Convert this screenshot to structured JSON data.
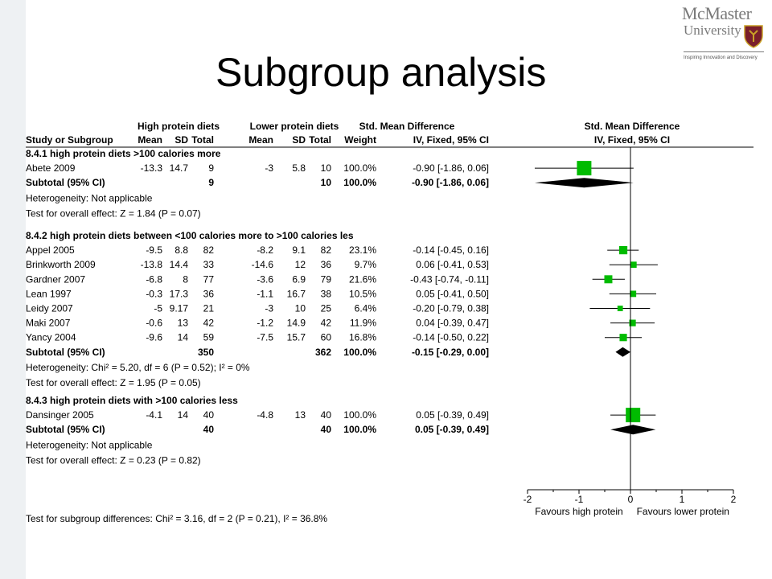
{
  "slide": {
    "title": "Subgroup analysis",
    "logo": {
      "line1": "McMaster",
      "line2": "University",
      "tagline": "Inspiring Innovation and Discovery"
    }
  },
  "headers": {
    "study": "Study or Subgroup",
    "group1": "High protein diets",
    "group2": "Lower protein diets",
    "mean": "Mean",
    "sd": "SD",
    "total": "Total",
    "weight": "Weight",
    "effect_title": "Std. Mean Difference",
    "effect_method": "IV, Fixed, 95% CI",
    "plot_title": "Std. Mean Difference",
    "plot_method": "IV, Fixed, 95% CI"
  },
  "colors": {
    "square": "#00bb00",
    "diamond": "#000000"
  },
  "chart_data": {
    "type": "forest",
    "xlim": [
      -2,
      2
    ],
    "xticks": [
      "-2",
      "-1",
      "0",
      "1",
      "2"
    ],
    "favours_left": "Favours high protein",
    "favours_right": "Favours lower protein",
    "overall_test": "Test for subgroup differences: Chi² = 3.16, df = 2 (P = 0.21), I² = 36.8%",
    "groups": [
      {
        "title": "8.4.1 high protein diets >100 calories more",
        "studies": [
          {
            "name": "Abete 2009",
            "m1": "-13.3",
            "sd1": "14.7",
            "n1": "9",
            "m2": "-3",
            "sd2": "5.8",
            "n2": "10",
            "weight": "100.0%",
            "ci": "-0.90 [-1.86, 0.06]",
            "est": -0.9,
            "lo": -1.86,
            "hi": 0.06,
            "w": 100.0
          }
        ],
        "subtotal": {
          "label": "Subtotal (95% CI)",
          "n1": "9",
          "n2": "10",
          "weight": "100.0%",
          "ci": "-0.90 [-1.86, 0.06]",
          "est": -0.9,
          "lo": -1.86,
          "hi": 0.06
        },
        "heterogeneity": "Heterogeneity: Not applicable",
        "effect_test": "Test for overall effect: Z = 1.84 (P = 0.07)"
      },
      {
        "title": "8.4.2 high protein diets between <100 calories more to >100 calories les",
        "studies": [
          {
            "name": "Appel 2005",
            "m1": "-9.5",
            "sd1": "8.8",
            "n1": "82",
            "m2": "-8.2",
            "sd2": "9.1",
            "n2": "82",
            "weight": "23.1%",
            "ci": "-0.14 [-0.45, 0.16]",
            "est": -0.14,
            "lo": -0.45,
            "hi": 0.16,
            "w": 23.1
          },
          {
            "name": "Brinkworth 2009",
            "m1": "-13.8",
            "sd1": "14.4",
            "n1": "33",
            "m2": "-14.6",
            "sd2": "12",
            "n2": "36",
            "weight": "9.7%",
            "ci": "0.06 [-0.41, 0.53]",
            "est": 0.06,
            "lo": -0.41,
            "hi": 0.53,
            "w": 9.7
          },
          {
            "name": "Gardner 2007",
            "m1": "-6.8",
            "sd1": "8",
            "n1": "77",
            "m2": "-3.6",
            "sd2": "6.9",
            "n2": "79",
            "weight": "21.6%",
            "ci": "-0.43 [-0.74, -0.11]",
            "est": -0.43,
            "lo": -0.74,
            "hi": -0.11,
            "w": 21.6
          },
          {
            "name": "Lean 1997",
            "m1": "-0.3",
            "sd1": "17.3",
            "n1": "36",
            "m2": "-1.1",
            "sd2": "16.7",
            "n2": "38",
            "weight": "10.5%",
            "ci": "0.05 [-0.41, 0.50]",
            "est": 0.05,
            "lo": -0.41,
            "hi": 0.5,
            "w": 10.5
          },
          {
            "name": "Leidy 2007",
            "m1": "-5",
            "sd1": "9.17",
            "n1": "21",
            "m2": "-3",
            "sd2": "10",
            "n2": "25",
            "weight": "6.4%",
            "ci": "-0.20 [-0.79, 0.38]",
            "est": -0.2,
            "lo": -0.79,
            "hi": 0.38,
            "w": 6.4
          },
          {
            "name": "Maki 2007",
            "m1": "-0.6",
            "sd1": "13",
            "n1": "42",
            "m2": "-1.2",
            "sd2": "14.9",
            "n2": "42",
            "weight": "11.9%",
            "ci": "0.04 [-0.39, 0.47]",
            "est": 0.04,
            "lo": -0.39,
            "hi": 0.47,
            "w": 11.9
          },
          {
            "name": "Yancy 2004",
            "m1": "-9.6",
            "sd1": "14",
            "n1": "59",
            "m2": "-7.5",
            "sd2": "15.7",
            "n2": "60",
            "weight": "16.8%",
            "ci": "-0.14 [-0.50, 0.22]",
            "est": -0.14,
            "lo": -0.5,
            "hi": 0.22,
            "w": 16.8
          }
        ],
        "subtotal": {
          "label": "Subtotal (95% CI)",
          "n1": "350",
          "n2": "362",
          "weight": "100.0%",
          "ci": "-0.15 [-0.29, 0.00]",
          "est": -0.15,
          "lo": -0.29,
          "hi": 0.0
        },
        "heterogeneity": "Heterogeneity: Chi² = 5.20, df = 6 (P = 0.52); I² = 0%",
        "effect_test": "Test for overall effect: Z = 1.95 (P = 0.05)"
      },
      {
        "title": "8.4.3 high protein diets with >100 calories less",
        "studies": [
          {
            "name": "Dansinger 2005",
            "m1": "-4.1",
            "sd1": "14",
            "n1": "40",
            "m2": "-4.8",
            "sd2": "13",
            "n2": "40",
            "weight": "100.0%",
            "ci": "0.05 [-0.39, 0.49]",
            "est": 0.05,
            "lo": -0.39,
            "hi": 0.49,
            "w": 100.0
          }
        ],
        "subtotal": {
          "label": "Subtotal (95% CI)",
          "n1": "40",
          "n2": "40",
          "weight": "100.0%",
          "ci": "0.05 [-0.39, 0.49]",
          "est": 0.05,
          "lo": -0.39,
          "hi": 0.49
        },
        "heterogeneity": "Heterogeneity: Not applicable",
        "effect_test": "Test for overall effect: Z = 0.23 (P = 0.82)"
      }
    ]
  }
}
